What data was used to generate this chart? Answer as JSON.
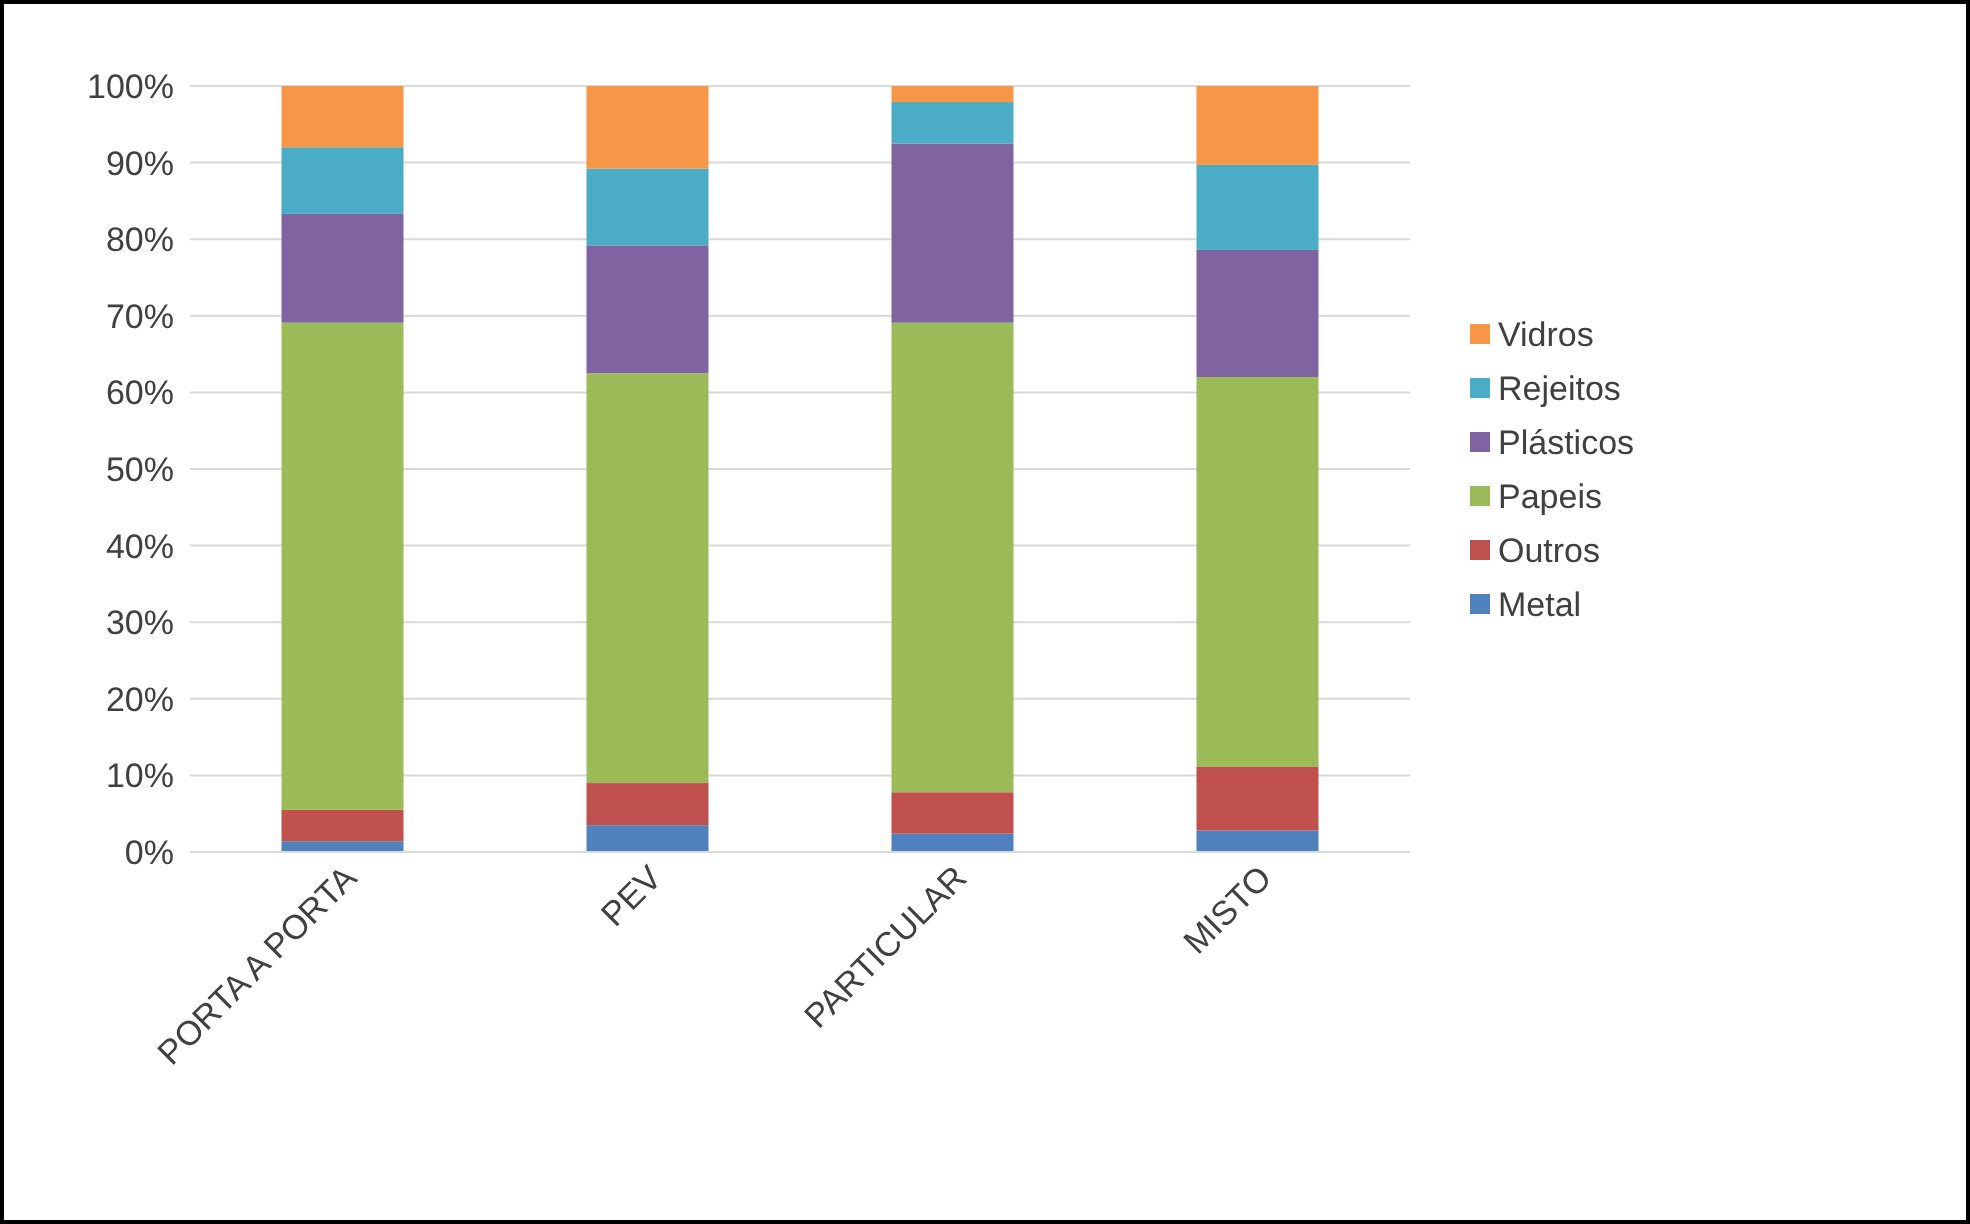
{
  "chart_data": {
    "type": "bar",
    "stacked": true,
    "categories": [
      "PORTA A PORTA",
      "PEV",
      "PARTICULAR",
      "MISTO"
    ],
    "series": [
      {
        "name": "Metal",
        "color": "#4f81bd",
        "values": [
          1.4,
          3.5,
          2.4,
          2.8
        ]
      },
      {
        "name": "Outros",
        "color": "#c0504d",
        "values": [
          4.1,
          5.5,
          5.4,
          8.3
        ]
      },
      {
        "name": "Papeis",
        "color": "#9bbb59",
        "values": [
          63.6,
          53.5,
          61.3,
          50.9
        ]
      },
      {
        "name": "Plásticos",
        "color": "#8064a2",
        "values": [
          14.2,
          16.7,
          23.4,
          16.6
        ]
      },
      {
        "name": "Rejeitos",
        "color": "#4bacc6",
        "values": [
          8.7,
          10.0,
          5.4,
          11.1
        ]
      },
      {
        "name": "Vidros",
        "color": "#f79646",
        "values": [
          8.0,
          10.8,
          2.1,
          10.3
        ]
      }
    ],
    "ylim": [
      0,
      100
    ],
    "yticks": [
      {
        "value": 0,
        "label": "0%"
      },
      {
        "value": 10,
        "label": "10%"
      },
      {
        "value": 20,
        "label": "20%"
      },
      {
        "value": 30,
        "label": "30%"
      },
      {
        "value": 40,
        "label": "40%"
      },
      {
        "value": 50,
        "label": "50%"
      },
      {
        "value": 60,
        "label": "60%"
      },
      {
        "value": 70,
        "label": "70%"
      },
      {
        "value": 80,
        "label": "80%"
      },
      {
        "value": 90,
        "label": "90%"
      },
      {
        "value": 100,
        "label": "100%"
      }
    ],
    "grid": "y",
    "legend": "right"
  }
}
